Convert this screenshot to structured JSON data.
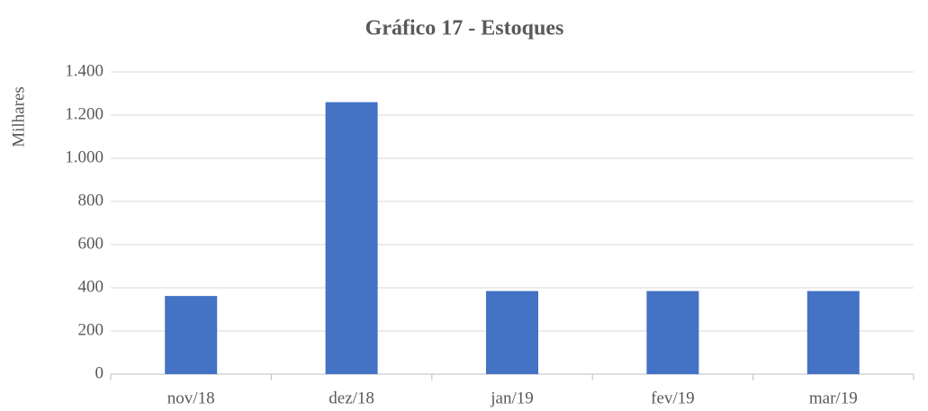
{
  "chart_data": {
    "type": "bar",
    "title": "Gráfico 17 - Estoques",
    "y_label": "Milhares",
    "categories": [
      "nov/18",
      "dez/18",
      "jan/19",
      "fev/19",
      "mar/19"
    ],
    "values": [
      362,
      1260,
      385,
      385,
      385
    ],
    "color": "#4472c4",
    "ylim": [
      0,
      1400
    ],
    "yticks": [
      0,
      200,
      400,
      600,
      800,
      {
        "value": 1000,
        "label": "1.000"
      },
      {
        "value": 1200,
        "label": "1.200"
      },
      {
        "value": 1400,
        "label": "1.400"
      }
    ],
    "grid": true
  }
}
